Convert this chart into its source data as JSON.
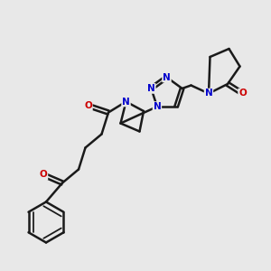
{
  "bg_color": "#e8e8e8",
  "bond_color": "#1a1a1a",
  "nitrogen_color": "#0000cc",
  "oxygen_color": "#cc0000",
  "bond_width": 1.8,
  "fig_width": 3.0,
  "fig_height": 3.0,
  "dpi": 100,
  "xlim": [
    0,
    10
  ],
  "ylim": [
    0,
    10
  ]
}
